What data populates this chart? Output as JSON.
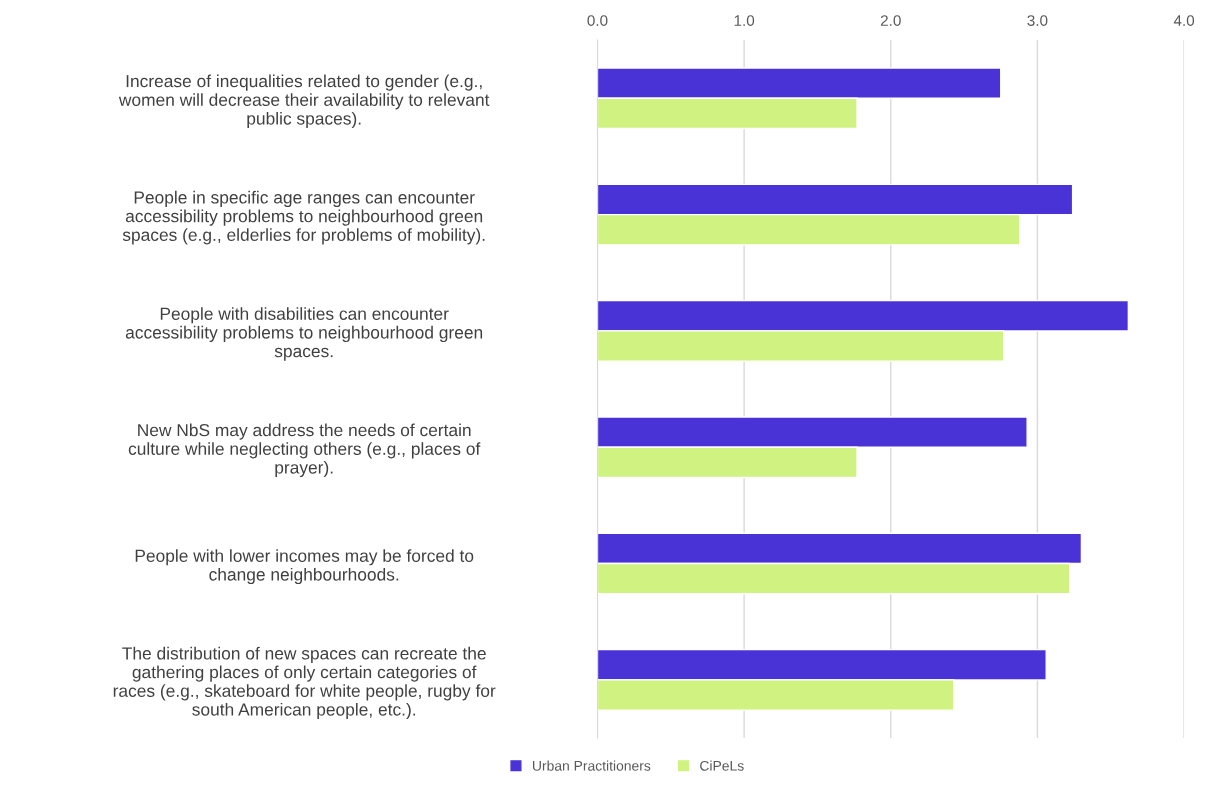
{
  "chart_data": {
    "type": "bar",
    "orientation": "horizontal",
    "categories": [
      "Increase of inequalities related to gender (e.g.,\nwomen will decrease their availability to relevant\npublic spaces).",
      "People in specific age ranges can encounter\naccessibility problems to neighbourhood green\nspaces (e.g., elderlies for problems of mobility).",
      "People with disabilities can encounter\naccessibility problems to neighbourhood green\nspaces.",
      "New NbS may address the needs of certain\nculture while neglecting others (e.g., places of\nprayer).",
      "People with lower incomes may be forced to\nchange neighbourhoods.",
      "The distribution of new spaces can recreate the\ngathering places of only certain categories of\nraces (e.g., skateboard for white people, rugby for\nsouth American people, etc.)."
    ],
    "series": [
      {
        "name": "Urban Practitioners",
        "color": "#4a33d6",
        "values": [
          2.75,
          3.24,
          3.62,
          2.93,
          3.3,
          3.06
        ]
      },
      {
        "name": "CiPeLs",
        "color": "#d0f281",
        "values": [
          1.77,
          2.88,
          2.77,
          1.77,
          3.22,
          2.43
        ]
      }
    ],
    "xlim": [
      0,
      4
    ],
    "xticks": [
      {
        "value": 0,
        "label": "0.0"
      },
      {
        "value": 1,
        "label": "1.0"
      },
      {
        "value": 2,
        "label": "2.0"
      },
      {
        "value": 3,
        "label": "3.0"
      },
      {
        "value": 4,
        "label": "4.0"
      }
    ],
    "grid": "x",
    "legend": "bottom"
  }
}
